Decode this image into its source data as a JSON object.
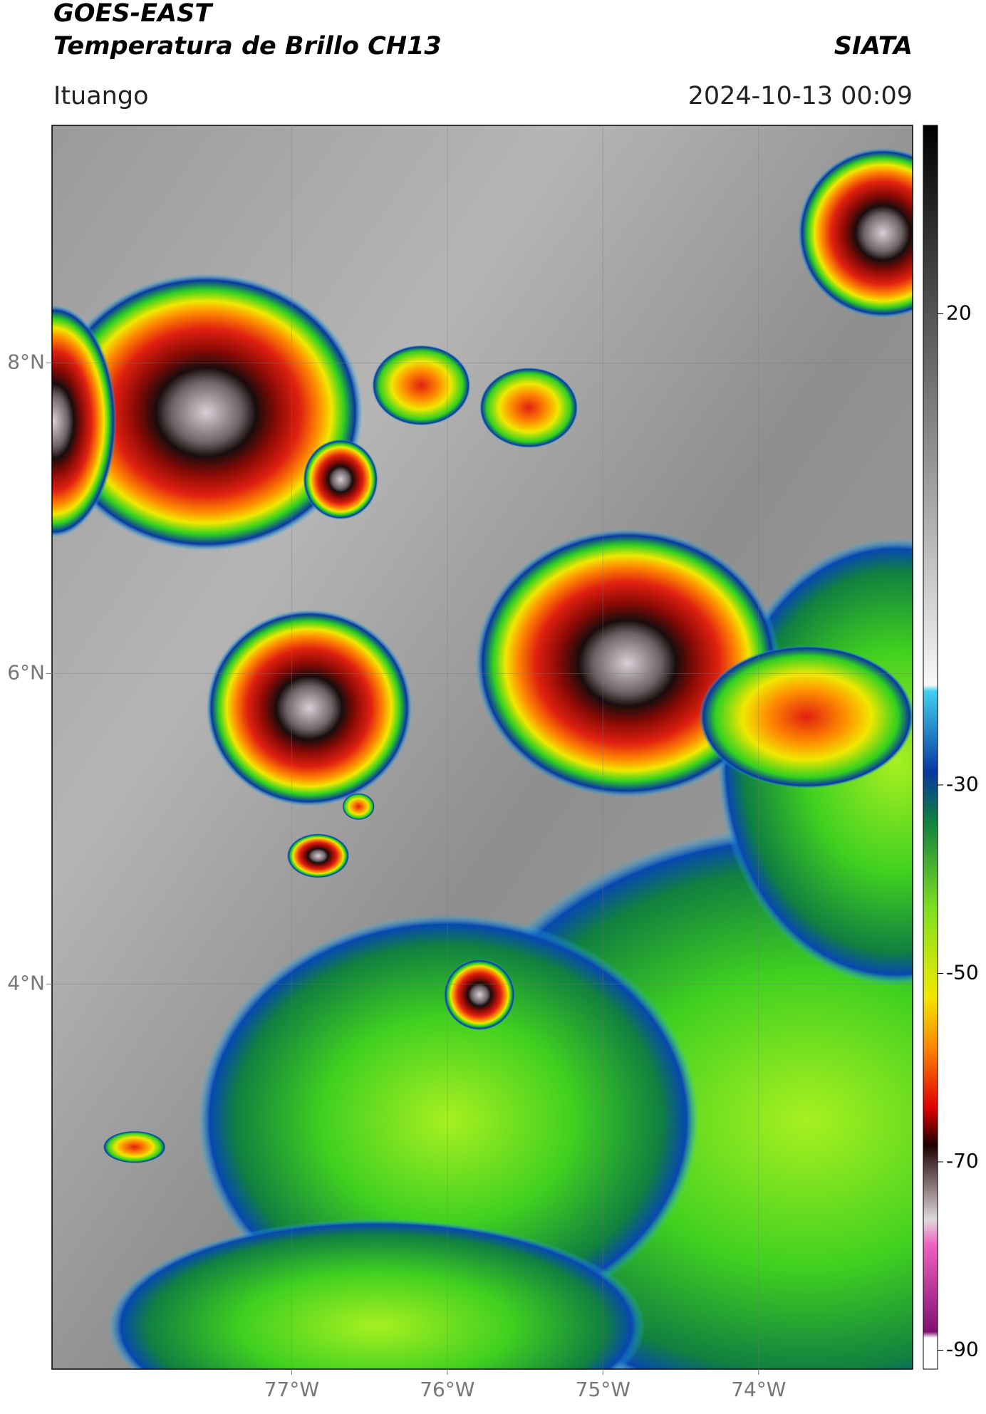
{
  "header": {
    "title_line1": "GOES-EAST",
    "title_line2": "Temperatura de Brillo CH13",
    "agency": "SIATA",
    "location": "Ituango",
    "datetime": "2024-10-13 00:09"
  },
  "map": {
    "lonlim": [
      -78.54,
      -73.01
    ],
    "latlim": [
      1.52,
      9.53
    ],
    "xticks": [
      {
        "value": -77,
        "label": "77°W"
      },
      {
        "value": -76,
        "label": "76°W"
      },
      {
        "value": -75,
        "label": "75°W"
      },
      {
        "value": -74,
        "label": "74°W"
      }
    ],
    "yticks": [
      {
        "value": 8,
        "label": "8°N"
      },
      {
        "value": 6,
        "label": "6°N"
      },
      {
        "value": 4,
        "label": "4°N"
      }
    ]
  },
  "colorbar": {
    "lim": [
      -92,
      40
    ],
    "ticks": [
      20,
      -30,
      -50,
      -70,
      -90
    ]
  }
}
